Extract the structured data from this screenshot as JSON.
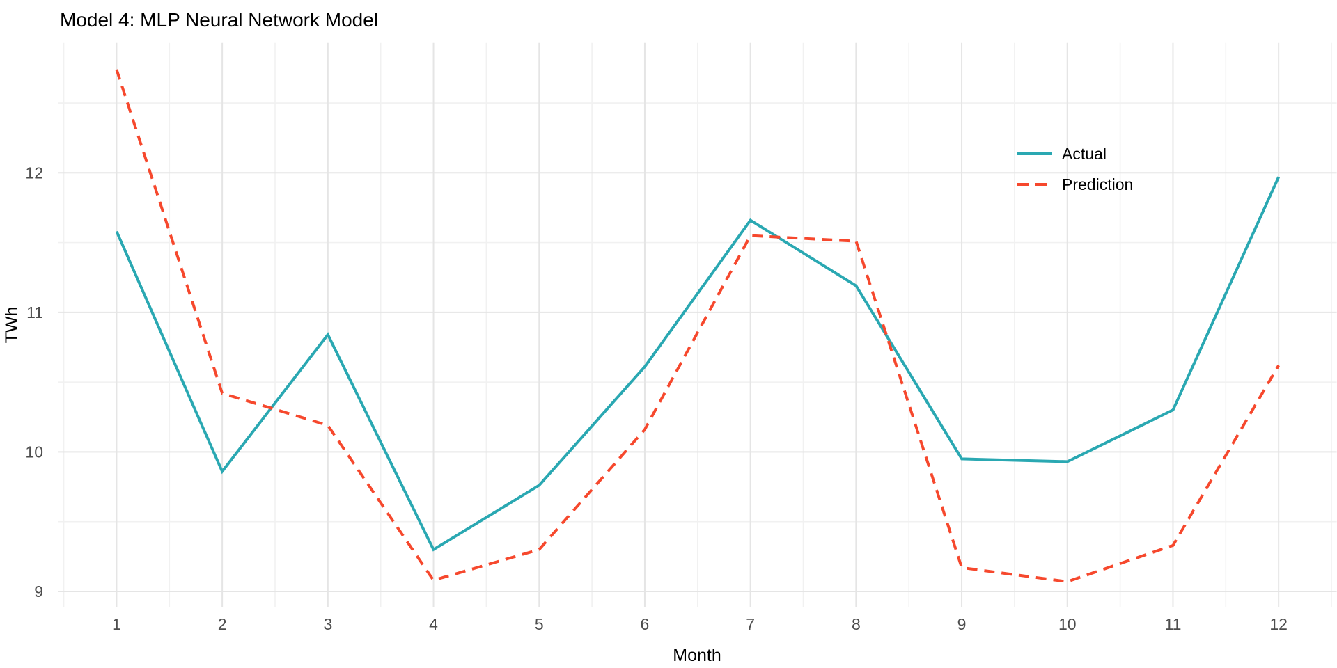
{
  "chart_data": {
    "type": "line",
    "title": "Model 4: MLP Neural Network Model",
    "xlabel": "Month",
    "ylabel": "TWh",
    "x": [
      1,
      2,
      3,
      4,
      5,
      6,
      7,
      8,
      9,
      10,
      11,
      12
    ],
    "series": [
      {
        "name": "Actual",
        "color": "#2AA8B2",
        "style": "solid",
        "values": [
          11.58,
          9.86,
          10.84,
          9.3,
          9.76,
          10.61,
          11.66,
          11.19,
          9.95,
          9.93,
          10.3,
          11.97
        ]
      },
      {
        "name": "Prediction",
        "color": "#F6482D",
        "style": "dashed",
        "values": [
          12.74,
          10.42,
          10.19,
          9.08,
          9.3,
          10.16,
          11.55,
          11.51,
          9.17,
          9.07,
          9.33,
          10.62
        ]
      }
    ],
    "x_ticks": [
      "1",
      "2",
      "3",
      "4",
      "5",
      "6",
      "7",
      "8",
      "9",
      "10",
      "11",
      "12"
    ],
    "y_ticks": [
      "9",
      "10",
      "11",
      "12"
    ],
    "y_tick_values": [
      9,
      10,
      11,
      12
    ],
    "x_tick_values": [
      1,
      2,
      3,
      4,
      5,
      6,
      7,
      8,
      9,
      10,
      11,
      12
    ],
    "xlim": [
      0.45,
      12.55
    ],
    "ylim": [
      8.89,
      12.93
    ],
    "minor_x": [
      0.5,
      1.5,
      2.5,
      3.5,
      4.5,
      5.5,
      6.5,
      7.5,
      8.5,
      9.5,
      10.5,
      11.5,
      12.5
    ],
    "minor_y": [
      9.5,
      10.5,
      11.5,
      12.5
    ],
    "grid": "major+minor",
    "legend_position": "right-upper",
    "colors": {
      "grid_major": "#E5E5E5",
      "grid_minor": "#F1F1F1",
      "tick_label": "#4D4D4D",
      "text": "#000000",
      "background": "#FFFFFF"
    }
  }
}
